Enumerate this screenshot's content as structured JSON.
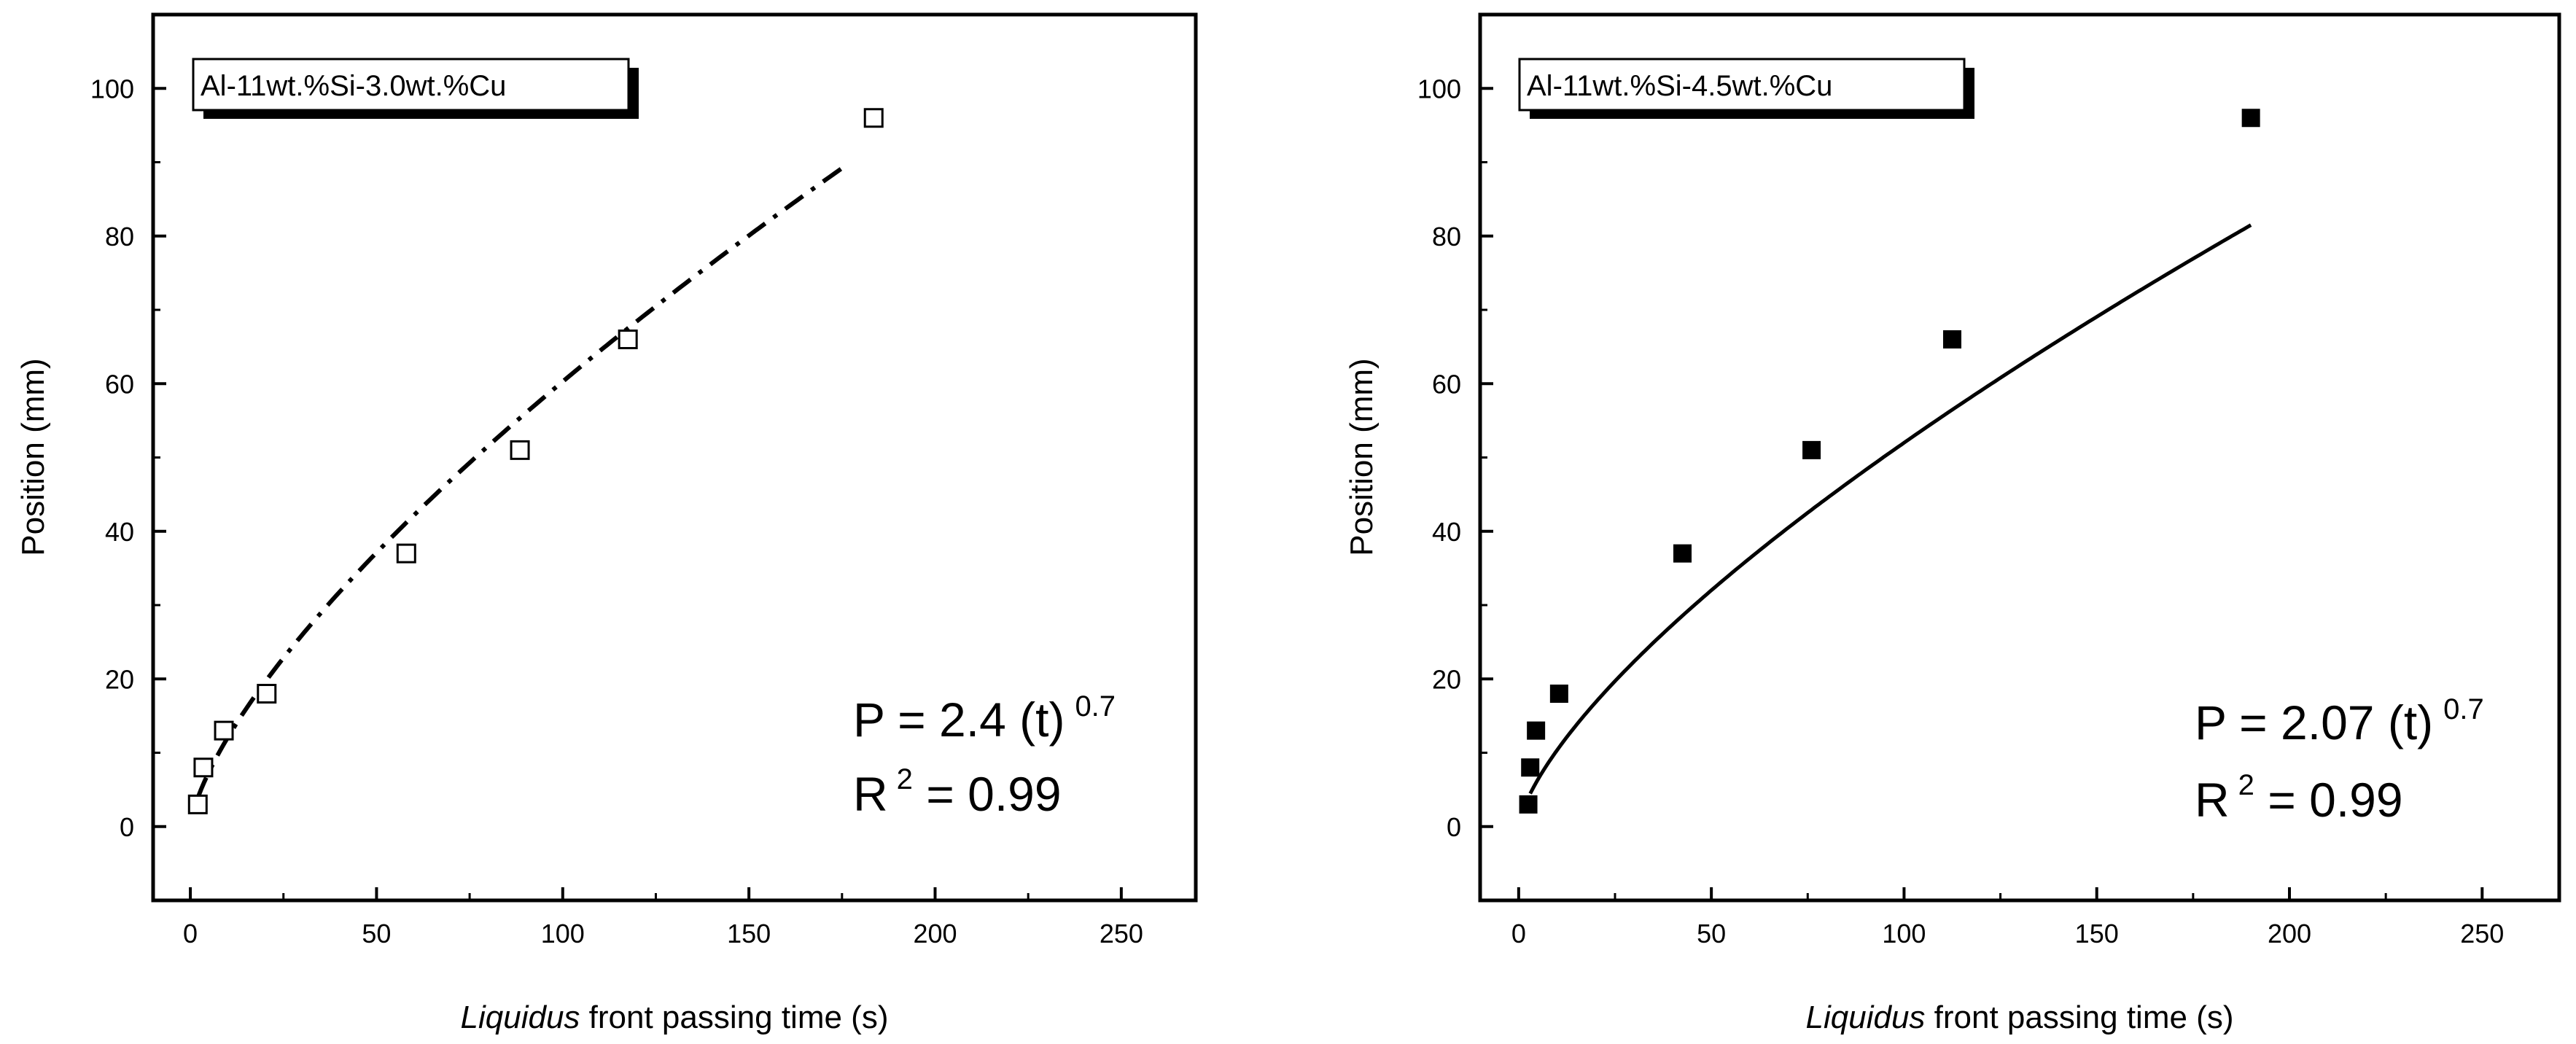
{
  "chart_data": [
    {
      "type": "scatter",
      "title": "",
      "legend": "Al-11wt.%Si-3.0wt.%Cu",
      "xlabel_italic": "Liquidus",
      "xlabel_rest": " front passing time (s)",
      "ylabel": "Position (mm)",
      "xlim": [
        -10,
        270
      ],
      "ylim": [
        -10,
        110
      ],
      "xticks": [
        "0",
        "50",
        "100",
        "150",
        "200",
        "250"
      ],
      "yticks": [
        "0",
        "20",
        "40",
        "60",
        "80",
        "100"
      ],
      "marker": "open-square",
      "fit_style": "dash-dot",
      "points": [
        {
          "x": 2,
          "y": 3
        },
        {
          "x": 3.5,
          "y": 8
        },
        {
          "x": 9,
          "y": 13
        },
        {
          "x": 20.5,
          "y": 18
        },
        {
          "x": 58,
          "y": 37
        },
        {
          "x": 88.5,
          "y": 51
        },
        {
          "x": 117.5,
          "y": 66
        },
        {
          "x": 183.5,
          "y": 96
        }
      ],
      "fit": {
        "a": 2.4,
        "b": 0.7,
        "x_start": 2,
        "x_end": 175
      },
      "equation": {
        "line1_base": "P = 2.4 (t)",
        "line1_sup": "0.7",
        "line2_base": "R",
        "line2_sup": "2",
        "line2_rest": " = 0.99"
      }
    },
    {
      "type": "scatter",
      "title": "",
      "legend": "Al-11wt.%Si-4.5wt.%Cu",
      "xlabel_italic": "Liquidus",
      "xlabel_rest": " front passing time (s)",
      "ylabel": "Position (mm)",
      "xlim": [
        -10,
        270
      ],
      "ylim": [
        -10,
        110
      ],
      "xticks": [
        "0",
        "50",
        "100",
        "150",
        "200",
        "250"
      ],
      "yticks": [
        "0",
        "20",
        "40",
        "60",
        "80",
        "100"
      ],
      "marker": "filled-square",
      "fit_style": "solid",
      "points": [
        {
          "x": 2.5,
          "y": 3
        },
        {
          "x": 3,
          "y": 8
        },
        {
          "x": 4.5,
          "y": 13
        },
        {
          "x": 10.5,
          "y": 18
        },
        {
          "x": 42.5,
          "y": 37
        },
        {
          "x": 76,
          "y": 51
        },
        {
          "x": 112.5,
          "y": 66
        },
        {
          "x": 190,
          "y": 96
        }
      ],
      "fit": {
        "a": 2.07,
        "b": 0.7,
        "x_start": 3,
        "x_end": 190
      },
      "equation": {
        "line1_base": "P = 2.07 (t)",
        "line1_sup": "0.7",
        "line2_base": "R",
        "line2_sup": "2",
        "line2_rest": " = 0.99"
      }
    }
  ]
}
